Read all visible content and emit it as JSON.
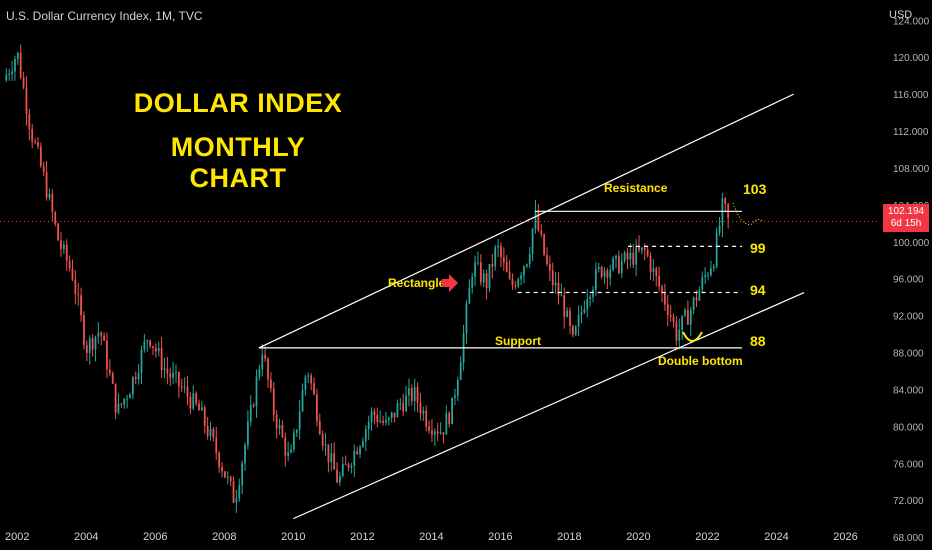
{
  "header": {
    "symbol": "U.S. Dollar Currency Index, 1M, TVC",
    "currency": "USD"
  },
  "headline": {
    "line1": "DOLLAR INDEX",
    "line2": "MONTHLY CHART"
  },
  "price_tag": {
    "price": "102.194",
    "countdown": "6d 15h"
  },
  "colors": {
    "up": "#26a69a",
    "down": "#ef5350",
    "accent": "#ffe600",
    "price_line": "#f23645"
  },
  "chart_data": {
    "type": "candlestick",
    "x_ticks": [
      "2002",
      "2004",
      "2006",
      "2008",
      "2010",
      "2012",
      "2014",
      "2016",
      "2018",
      "2020",
      "2022",
      "2024",
      "2026"
    ],
    "y_ticks": [
      "124.000",
      "120.000",
      "116.000",
      "112.000",
      "108.000",
      "104.000",
      "100.000",
      "96.000",
      "92.000",
      "88.000",
      "84.000",
      "80.000",
      "76.000",
      "72.000",
      "68.000"
    ],
    "ylim": [
      66.6,
      126.2
    ],
    "xlim": [
      2001.5,
      2027.0
    ],
    "current_price": 102.194,
    "close_path": [
      [
        2001.6,
        117.5
      ],
      [
        2002.0,
        120.5
      ],
      [
        2002.4,
        112.0
      ],
      [
        2002.8,
        106.5
      ],
      [
        2003.2,
        100.0
      ],
      [
        2003.6,
        96.5
      ],
      [
        2004.0,
        88.5
      ],
      [
        2004.4,
        90.5
      ],
      [
        2004.9,
        81.5
      ],
      [
        2005.3,
        84.5
      ],
      [
        2005.8,
        90.0
      ],
      [
        2006.3,
        86.0
      ],
      [
        2006.8,
        84.0
      ],
      [
        2007.3,
        81.5
      ],
      [
        2007.8,
        77.0
      ],
      [
        2008.3,
        72.0
      ],
      [
        2008.8,
        82.0
      ],
      [
        2009.1,
        88.5
      ],
      [
        2009.4,
        82.0
      ],
      [
        2009.9,
        76.0
      ],
      [
        2010.4,
        86.5
      ],
      [
        2010.9,
        78.0
      ],
      [
        2011.3,
        74.0
      ],
      [
        2011.8,
        77.5
      ],
      [
        2012.3,
        81.5
      ],
      [
        2012.7,
        80.0
      ],
      [
        2013.1,
        82.5
      ],
      [
        2013.5,
        83.5
      ],
      [
        2013.9,
        80.5
      ],
      [
        2014.3,
        79.5
      ],
      [
        2014.6,
        82.0
      ],
      [
        2014.9,
        89.0
      ],
      [
        2015.2,
        97.5
      ],
      [
        2015.6,
        95.5
      ],
      [
        2015.9,
        99.5
      ],
      [
        2016.3,
        95.0
      ],
      [
        2016.8,
        98.5
      ],
      [
        2017.0,
        102.8
      ],
      [
        2017.4,
        96.5
      ],
      [
        2017.8,
        93.5
      ],
      [
        2018.1,
        89.0
      ],
      [
        2018.5,
        94.5
      ],
      [
        2018.9,
        97.0
      ],
      [
        2019.4,
        97.5
      ],
      [
        2019.9,
        98.5
      ],
      [
        2020.2,
        99.0
      ],
      [
        2020.5,
        96.0
      ],
      [
        2020.9,
        92.5
      ],
      [
        2021.1,
        90.0
      ],
      [
        2021.5,
        92.5
      ],
      [
        2021.9,
        96.0
      ],
      [
        2022.2,
        98.5
      ],
      [
        2022.45,
        104.0
      ],
      [
        2022.6,
        102.2
      ]
    ],
    "lines": [
      {
        "kind": "channel-upper",
        "x1": 2009.0,
        "y1": 88.5,
        "x2": 2024.5,
        "y2": 116.0
      },
      {
        "kind": "channel-lower",
        "x1": 2010.0,
        "y1": 70.0,
        "x2": 2024.8,
        "y2": 94.5
      },
      {
        "kind": "resistance",
        "x1": 2017.0,
        "y1": 103.3,
        "x2": 2023.0,
        "y2": 103.3
      },
      {
        "kind": "support",
        "x1": 2009.0,
        "y1": 88.5,
        "x2": 2023.0,
        "y2": 88.5
      },
      {
        "kind": "dashed-99",
        "x1": 2019.7,
        "y1": 99.5,
        "x2": 2023.0,
        "y2": 99.5
      },
      {
        "kind": "dashed-94",
        "x1": 2016.5,
        "y1": 94.5,
        "x2": 2023.0,
        "y2": 94.5
      }
    ],
    "annotations": {
      "resistance": "Resistance",
      "support": "Support",
      "rectangle": "Rectangle",
      "double_bottom": "Double bottom",
      "levels": [
        "103",
        "99",
        "94",
        "88"
      ]
    }
  }
}
